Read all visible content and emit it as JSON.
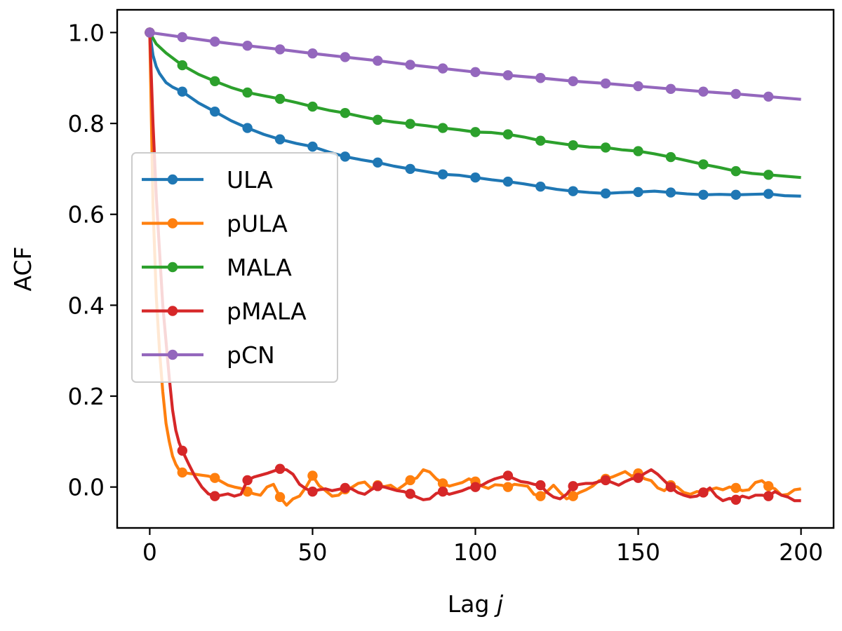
{
  "chart_data": {
    "type": "line",
    "title": "",
    "xlabel": "Lag",
    "xlabel_var": "j",
    "ylabel": "ACF",
    "xlim": [
      -10,
      210
    ],
    "ylim": [
      -0.09,
      1.05
    ],
    "xticks": [
      0,
      50,
      100,
      150,
      200
    ],
    "xtick_labels": [
      "0",
      "50",
      "100",
      "150",
      "200"
    ],
    "yticks": [
      0.0,
      0.2,
      0.4,
      0.6,
      0.8,
      1.0
    ],
    "ytick_labels": [
      "0.0",
      "0.2",
      "0.4",
      "0.6",
      "0.8",
      "1.0"
    ],
    "grid": false,
    "legend_position": "center-left",
    "marker_lags": [
      0,
      10,
      20,
      30,
      40,
      50,
      60,
      70,
      80,
      90,
      100,
      110,
      120,
      130,
      140,
      150,
      160,
      170,
      180,
      190
    ],
    "series": [
      {
        "name": "ULA",
        "color": "#1f77b4",
        "x": [
          0,
          1,
          2,
          3,
          5,
          7,
          10,
          15,
          20,
          25,
          30,
          35,
          40,
          45,
          50,
          55,
          60,
          65,
          70,
          75,
          80,
          85,
          90,
          95,
          100,
          105,
          110,
          115,
          120,
          125,
          130,
          135,
          140,
          145,
          150,
          155,
          160,
          165,
          170,
          175,
          180,
          185,
          190,
          195,
          200
        ],
        "y": [
          1.0,
          0.95,
          0.925,
          0.91,
          0.89,
          0.88,
          0.87,
          0.845,
          0.826,
          0.806,
          0.79,
          0.776,
          0.765,
          0.756,
          0.749,
          0.737,
          0.727,
          0.72,
          0.714,
          0.706,
          0.7,
          0.694,
          0.688,
          0.686,
          0.681,
          0.676,
          0.672,
          0.667,
          0.661,
          0.655,
          0.651,
          0.648,
          0.646,
          0.648,
          0.649,
          0.651,
          0.648,
          0.645,
          0.643,
          0.644,
          0.643,
          0.644,
          0.645,
          0.641,
          0.64
        ]
      },
      {
        "name": "pULA",
        "color": "#ff7f0e",
        "x": [
          0,
          1,
          2,
          3,
          4,
          5,
          6,
          7,
          8,
          9,
          10,
          12,
          14,
          16,
          18,
          20,
          22,
          24,
          26,
          28,
          30,
          32,
          34,
          36,
          38,
          40,
          42,
          44,
          46,
          48,
          50,
          52,
          54,
          56,
          58,
          60,
          62,
          64,
          66,
          68,
          70,
          72,
          74,
          76,
          78,
          80,
          82,
          84,
          86,
          88,
          90,
          92,
          94,
          96,
          98,
          100,
          102,
          104,
          106,
          108,
          110,
          112,
          114,
          116,
          118,
          120,
          122,
          124,
          126,
          128,
          130,
          132,
          134,
          136,
          138,
          140,
          142,
          144,
          146,
          148,
          150,
          152,
          154,
          156,
          158,
          160,
          162,
          164,
          166,
          168,
          170,
          172,
          174,
          176,
          178,
          180,
          182,
          184,
          186,
          188,
          190,
          192,
          194,
          196,
          198,
          200
        ],
        "y": [
          1.0,
          0.62,
          0.42,
          0.3,
          0.21,
          0.14,
          0.1,
          0.068,
          0.05,
          0.038,
          0.032,
          0.03,
          0.028,
          0.026,
          0.024,
          0.02,
          0.012,
          0.004,
          0.0,
          -0.003,
          -0.01,
          -0.015,
          -0.018,
          0.0,
          0.006,
          -0.022,
          -0.04,
          -0.026,
          -0.02,
          0.0,
          0.025,
          0.003,
          -0.008,
          -0.02,
          -0.018,
          -0.005,
          -0.001,
          0.008,
          0.011,
          -0.003,
          0.004,
          0.001,
          0.004,
          -0.006,
          0.004,
          0.015,
          0.02,
          0.038,
          0.033,
          0.018,
          0.008,
          0.002,
          0.006,
          0.01,
          0.018,
          0.012,
          0.002,
          -0.003,
          0.005,
          0.004,
          0.0,
          0.006,
          0.004,
          0.002,
          -0.016,
          -0.02,
          -0.01,
          0.004,
          -0.012,
          -0.026,
          -0.02,
          -0.012,
          -0.006,
          0.002,
          0.014,
          0.018,
          0.022,
          0.028,
          0.034,
          0.024,
          0.03,
          0.018,
          0.014,
          -0.002,
          -0.008,
          0.004,
          0.0,
          -0.012,
          -0.016,
          -0.01,
          -0.012,
          -0.006,
          -0.002,
          -0.006,
          0.0,
          -0.002,
          -0.008,
          -0.006,
          0.01,
          0.014,
          0.002,
          -0.004,
          -0.018,
          -0.016,
          -0.006,
          -0.004
        ]
      },
      {
        "name": "MALA",
        "color": "#2ca02c",
        "x": [
          0,
          2,
          5,
          10,
          15,
          20,
          25,
          30,
          35,
          40,
          45,
          50,
          55,
          60,
          65,
          70,
          75,
          80,
          85,
          90,
          95,
          100,
          105,
          110,
          115,
          120,
          125,
          130,
          135,
          140,
          145,
          150,
          155,
          160,
          165,
          170,
          175,
          180,
          185,
          190,
          195,
          200
        ],
        "y": [
          1.0,
          0.975,
          0.955,
          0.928,
          0.908,
          0.893,
          0.879,
          0.868,
          0.861,
          0.854,
          0.846,
          0.837,
          0.829,
          0.823,
          0.815,
          0.808,
          0.803,
          0.799,
          0.795,
          0.79,
          0.786,
          0.781,
          0.78,
          0.776,
          0.77,
          0.762,
          0.757,
          0.752,
          0.748,
          0.747,
          0.742,
          0.739,
          0.733,
          0.726,
          0.718,
          0.71,
          0.703,
          0.695,
          0.69,
          0.687,
          0.684,
          0.681
        ]
      },
      {
        "name": "pMALA",
        "color": "#d62728",
        "x": [
          0,
          1,
          2,
          3,
          4,
          5,
          6,
          7,
          8,
          9,
          10,
          12,
          14,
          16,
          18,
          20,
          22,
          24,
          26,
          28,
          30,
          32,
          34,
          36,
          38,
          40,
          42,
          44,
          46,
          48,
          50,
          52,
          54,
          56,
          58,
          60,
          62,
          64,
          66,
          68,
          70,
          72,
          74,
          76,
          78,
          80,
          82,
          84,
          86,
          88,
          90,
          92,
          94,
          96,
          98,
          100,
          102,
          104,
          106,
          108,
          110,
          112,
          114,
          116,
          118,
          120,
          122,
          124,
          126,
          128,
          130,
          132,
          134,
          136,
          138,
          140,
          142,
          144,
          146,
          148,
          150,
          152,
          154,
          156,
          158,
          160,
          162,
          164,
          166,
          168,
          170,
          172,
          174,
          176,
          178,
          180,
          182,
          184,
          186,
          188,
          190,
          192,
          194,
          196,
          198,
          200
        ],
        "y": [
          1.0,
          0.8,
          0.64,
          0.52,
          0.4,
          0.32,
          0.24,
          0.17,
          0.125,
          0.098,
          0.08,
          0.05,
          0.022,
          0.0,
          -0.015,
          -0.02,
          -0.018,
          -0.015,
          -0.02,
          -0.016,
          0.015,
          0.022,
          0.026,
          0.03,
          0.035,
          0.04,
          0.038,
          0.028,
          0.006,
          -0.004,
          -0.01,
          -0.006,
          -0.004,
          -0.008,
          -0.005,
          -0.002,
          -0.004,
          -0.012,
          -0.016,
          -0.006,
          0.002,
          0.0,
          -0.004,
          -0.008,
          -0.01,
          -0.015,
          -0.022,
          -0.028,
          -0.026,
          -0.014,
          -0.01,
          -0.016,
          -0.012,
          -0.008,
          -0.002,
          0.0,
          0.004,
          0.012,
          0.018,
          0.022,
          0.025,
          0.018,
          0.012,
          0.01,
          0.006,
          0.004,
          -0.012,
          -0.022,
          -0.026,
          -0.016,
          0.002,
          0.006,
          0.008,
          0.008,
          0.012,
          0.015,
          0.01,
          0.004,
          0.012,
          0.018,
          0.02,
          0.03,
          0.038,
          0.028,
          0.014,
          0.0,
          -0.012,
          -0.018,
          -0.022,
          -0.02,
          -0.012,
          -0.002,
          -0.02,
          -0.03,
          -0.025,
          -0.028,
          -0.02,
          -0.024,
          -0.018,
          -0.018,
          -0.02,
          -0.01,
          -0.018,
          -0.022,
          -0.03,
          -0.03
        ]
      },
      {
        "name": "pCN",
        "color": "#9467bd",
        "x": [
          0,
          10,
          20,
          30,
          40,
          50,
          60,
          70,
          80,
          90,
          100,
          110,
          120,
          130,
          140,
          150,
          160,
          170,
          180,
          190,
          200
        ],
        "y": [
          1.0,
          0.99,
          0.98,
          0.971,
          0.963,
          0.954,
          0.946,
          0.938,
          0.929,
          0.921,
          0.913,
          0.906,
          0.9,
          0.893,
          0.888,
          0.882,
          0.876,
          0.87,
          0.865,
          0.859,
          0.853
        ]
      }
    ]
  }
}
